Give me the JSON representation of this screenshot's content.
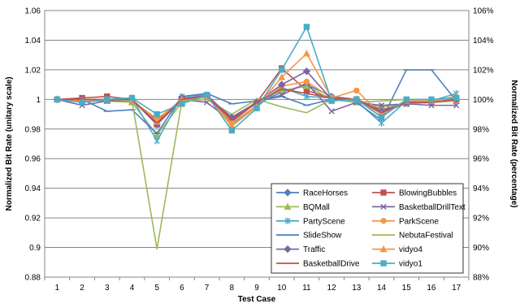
{
  "chart_data": {
    "type": "line",
    "title": "",
    "xlabel": "Test Case",
    "ylabel": "Normalized Bit Rate (unitary scale)",
    "y2label": "Normalized Bit Rate (percentage)",
    "ylim": [
      0.88,
      1.06
    ],
    "y_ticks": [
      "0.88",
      "0.9",
      "0.92",
      "0.94",
      "0.96",
      "0.98",
      "1",
      "1.02",
      "1.04",
      "1.06"
    ],
    "y2_ticks": [
      "88%",
      "90%",
      "92%",
      "94%",
      "96%",
      "98%",
      "100%",
      "102%",
      "104%",
      "106%"
    ],
    "categories": [
      "1",
      "2",
      "3",
      "4",
      "5",
      "6",
      "7",
      "8",
      "9",
      "10",
      "11",
      "12",
      "13",
      "14",
      "15",
      "16",
      "17"
    ],
    "grid": "horizontal",
    "legend_position": "bottom-right",
    "series": [
      {
        "name": "RaceHorses",
        "color": "#4f81bd",
        "marker": "diamond",
        "values": [
          1.0,
          1.0,
          1.0,
          1.0,
          0.985,
          1.0,
          1.002,
          0.988,
          0.997,
          1.005,
          1.01,
          1.002,
          1.0,
          0.99,
          0.998,
          0.998,
          1.0
        ]
      },
      {
        "name": "BlowingBubbles",
        "color": "#c0504d",
        "marker": "square",
        "values": [
          1.0,
          1.001,
          1.002,
          1.0,
          0.983,
          1.0,
          1.003,
          0.987,
          0.998,
          1.021,
          1.006,
          1.001,
          1.0,
          0.993,
          0.997,
          0.998,
          0.999
        ]
      },
      {
        "name": "BQMall",
        "color": "#9bbb59",
        "marker": "triangle",
        "values": [
          1.0,
          0.999,
          0.999,
          0.998,
          0.976,
          0.998,
          1.002,
          0.985,
          0.999,
          1.006,
          1.009,
          1.0,
          0.998,
          0.995,
          0.997,
          0.998,
          0.999
        ]
      },
      {
        "name": "BasketballDrillText",
        "color": "#8064a2",
        "marker": "x",
        "values": [
          1.0,
          0.996,
          0.999,
          0.999,
          0.986,
          1.0,
          0.998,
          0.985,
          0.998,
          1.003,
          1.011,
          0.992,
          0.998,
          0.996,
          0.997,
          0.996,
          0.996
        ]
      },
      {
        "name": "PartyScene",
        "color": "#4bacc6",
        "marker": "star",
        "values": [
          1.0,
          0.999,
          1.0,
          1.001,
          0.972,
          1.002,
          1.003,
          0.983,
          0.995,
          1.008,
          1.002,
          1.001,
          0.999,
          0.984,
          0.999,
          0.999,
          1.004
        ]
      },
      {
        "name": "ParkScene",
        "color": "#f79646",
        "marker": "circle",
        "values": [
          1.0,
          1.0,
          1.0,
          0.999,
          0.987,
          0.999,
          1.002,
          0.984,
          0.996,
          1.009,
          1.012,
          1.001,
          1.006,
          0.99,
          0.999,
          0.999,
          0.999
        ]
      },
      {
        "name": "SlideShow",
        "color": "#4f81bd",
        "marker": "plus",
        "values": [
          1.0,
          1.0,
          0.992,
          0.993,
          0.977,
          1.002,
          1.004,
          0.997,
          0.999,
          1.002,
          0.996,
          1.0,
          0.998,
          0.986,
          1.02,
          1.02,
          0.999
        ]
      },
      {
        "name": "NebutaFestival",
        "color": "#9bbb59",
        "marker": "none",
        "values": [
          1.0,
          0.999,
          1.0,
          0.999,
          0.899,
          0.999,
          1.0,
          0.99,
          1.0,
          0.995,
          0.991,
          1.0,
          0.998,
          0.999,
          1.0,
          1.0,
          1.0
        ]
      },
      {
        "name": "Traffic",
        "color": "#8064a2",
        "marker": "diamond",
        "values": [
          1.0,
          1.0,
          1.0,
          1.0,
          0.983,
          1.001,
          1.002,
          0.988,
          0.998,
          1.01,
          1.019,
          1.0,
          1.0,
          0.992,
          0.998,
          0.998,
          1.0
        ]
      },
      {
        "name": "vidyo4",
        "color": "#f79646",
        "marker": "triangle",
        "values": [
          1.0,
          0.999,
          1.0,
          1.0,
          0.985,
          1.0,
          1.002,
          0.982,
          0.995,
          1.015,
          1.031,
          1.001,
          1.0,
          0.99,
          0.999,
          0.999,
          1.002
        ]
      },
      {
        "name": "BasketballDrive",
        "color": "#c0504d",
        "marker": "none",
        "values": [
          1.0,
          1.0,
          1.0,
          1.0,
          0.984,
          1.0,
          1.002,
          0.986,
          0.998,
          1.007,
          1.004,
          1.001,
          1.0,
          0.991,
          0.998,
          0.998,
          1.0
        ]
      },
      {
        "name": "vidyo1",
        "color": "#4bacc6",
        "marker": "square",
        "values": [
          1.0,
          0.998,
          1.0,
          1.001,
          0.99,
          0.997,
          1.003,
          0.979,
          0.994,
          1.02,
          1.049,
          0.999,
          1.0,
          0.988,
          1.0,
          1.0,
          1.001
        ]
      }
    ]
  }
}
